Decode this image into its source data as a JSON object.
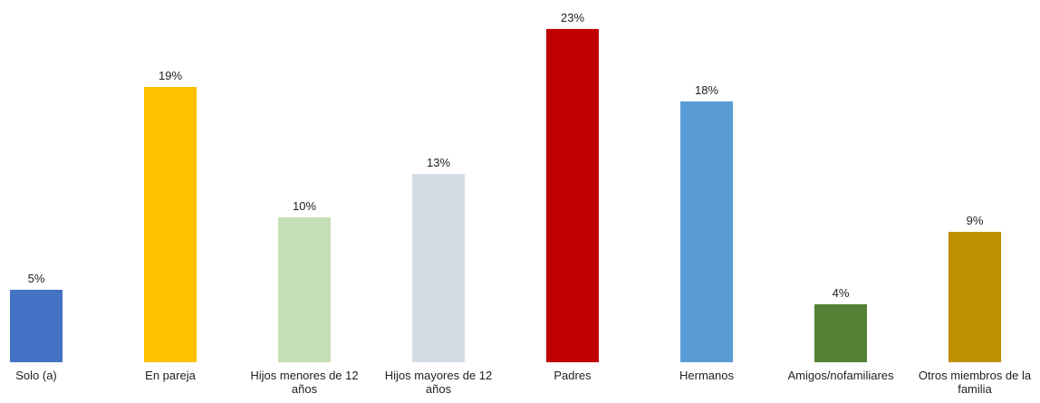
{
  "chart_data": {
    "type": "bar",
    "categories": [
      "Solo (a)",
      "En pareja",
      "Hijos menores de 12 años",
      "Hijos mayores de 12 años",
      "Padres",
      "Hermanos",
      "Amigos/nofamiliares",
      "Otros miembros de la familia"
    ],
    "values": [
      5,
      19,
      10,
      13,
      23,
      18,
      4,
      9
    ],
    "value_labels": [
      "5%",
      "19%",
      "10%",
      "13%",
      "23%",
      "18%",
      "4%",
      "9%"
    ],
    "colors": [
      "#4472c4",
      "#ffc000",
      "#c5e0b4",
      "#d6dce5",
      "#c00000",
      "#5b9bd5",
      "#548235",
      "#bf9000"
    ]
  }
}
